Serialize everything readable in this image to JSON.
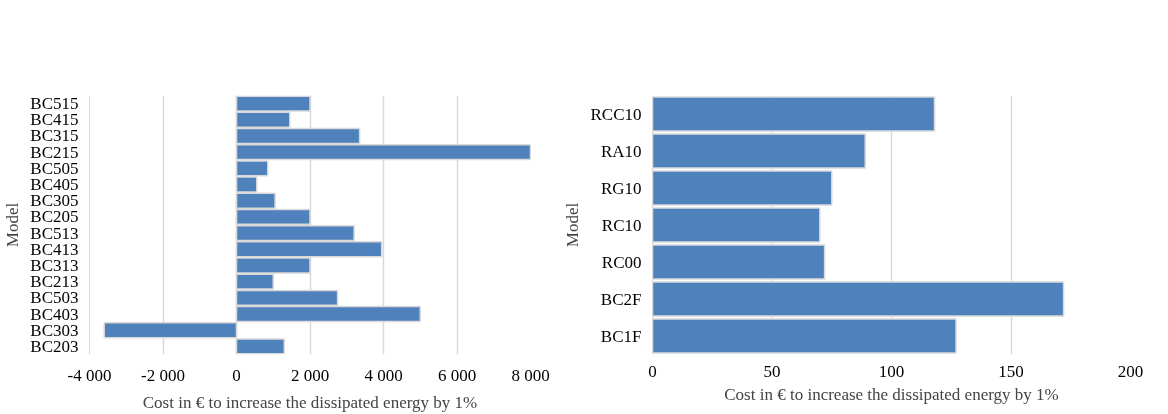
{
  "chart_data": [
    {
      "type": "bar",
      "orientation": "horizontal",
      "xlabel": "Cost in € to increase the dissipated energy by 1%",
      "ylabel": "Model",
      "categories": [
        "BC515",
        "BC415",
        "BC315",
        "BC215",
        "BC505",
        "BC405",
        "BC305",
        "BC205",
        "BC513",
        "BC413",
        "BC313",
        "BC213",
        "BC503",
        "BC403",
        "BC303",
        "BC203"
      ],
      "values": [
        2000,
        1450,
        3350,
        8000,
        850,
        550,
        1050,
        2000,
        3200,
        3950,
        2000,
        1000,
        2750,
        5000,
        -3600,
        1300
      ],
      "color": "#4f81bd",
      "xlim": [
        -4000,
        8000
      ],
      "xticks": [
        {
          "value": -4000,
          "label": "-4 000"
        },
        {
          "value": -2000,
          "label": "-2 000"
        },
        0,
        {
          "value": 2000,
          "label": "2 000"
        },
        {
          "value": 4000,
          "label": "4 000"
        },
        {
          "value": 6000,
          "label": "6 000"
        },
        {
          "value": 8000,
          "label": "8 000"
        }
      ],
      "grid": "x"
    },
    {
      "type": "bar",
      "orientation": "horizontal",
      "xlabel": "Cost in € to increase the dissipated energy by 1%",
      "ylabel": "Model",
      "categories": [
        "RCC10",
        "RA10",
        "RG10",
        "RC10",
        "RC00",
        "BC2F",
        "BC1F"
      ],
      "values": [
        118,
        89,
        75,
        70,
        72,
        172,
        127
      ],
      "color": "#4f81bd",
      "xlim": [
        0,
        200
      ],
      "xticks": [
        0,
        50,
        100,
        150,
        200
      ],
      "grid": "x"
    }
  ]
}
